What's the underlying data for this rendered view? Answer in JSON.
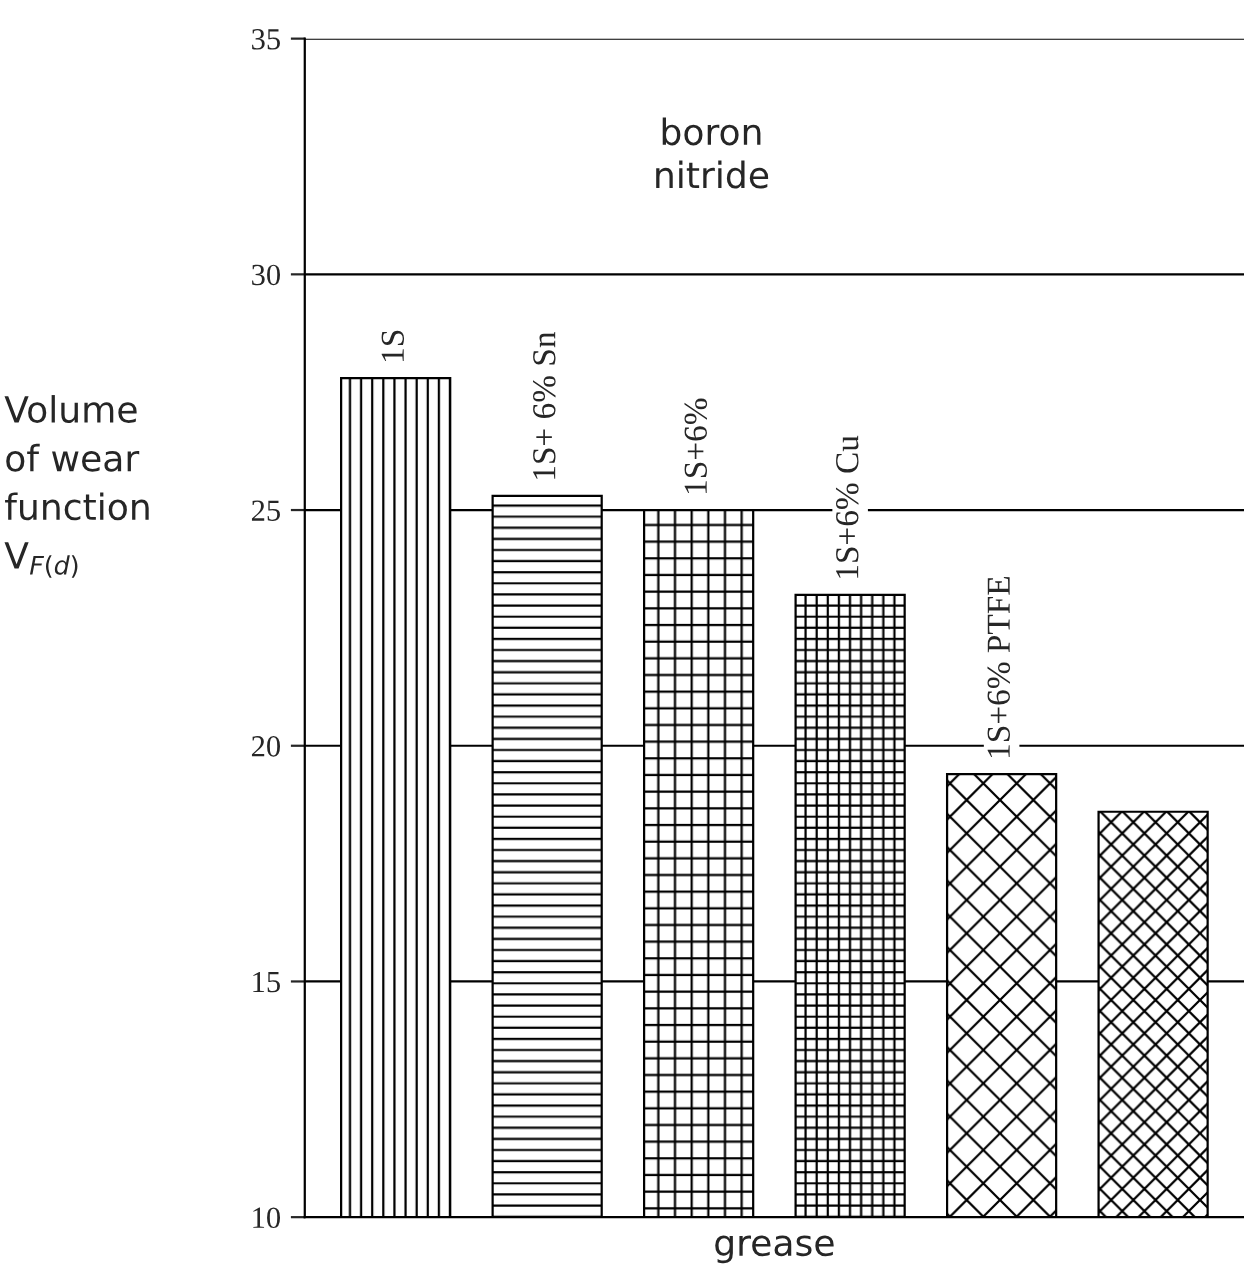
{
  "chart_data": {
    "type": "bar",
    "xlabel": "grease",
    "ylabel": "Volume\nof wear\nfunction\nV$_{F(d)}$",
    "categories": [
      "1S",
      "1S+ 6% Sn",
      "1S+6%",
      "1S+6% Cu",
      "1S+6% PTFE",
      null
    ],
    "values": [
      27.8,
      25.3,
      25.0,
      23.2,
      19.4,
      18.6
    ],
    "color": "#000000",
    "ylim": [
      10,
      35
    ],
    "yticks": [
      10,
      15,
      20,
      25,
      30,
      35
    ],
    "grid": "y",
    "tick_labels": "y",
    "annotations": [
      "boron\nnitride"
    ]
  }
}
